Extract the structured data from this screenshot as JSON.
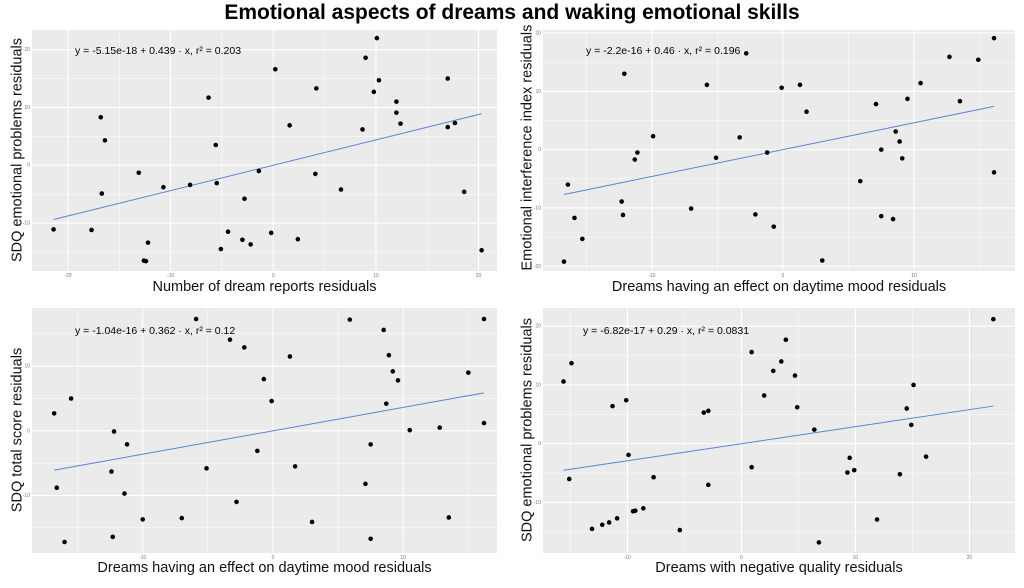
{
  "title": "Emotional aspects of dreams and waking emotional skills",
  "colors": {
    "panel_bg": "#ebebeb",
    "grid": "#ffffff",
    "points": "#000000",
    "fit_line": "#5b83d6"
  },
  "chart_data": [
    {
      "type": "scatter",
      "xlabel": "Number of dream reports residuals",
      "ylabel": "SDQ emotional problems residuals",
      "annotation": "y = -5.15e-18 + 0.439 · x,  r² = 0.203",
      "xlim": [
        -23.5,
        21.8
      ],
      "ylim": [
        -18.3,
        23.4
      ],
      "xticks": [
        -20,
        -10,
        0,
        10,
        20
      ],
      "yticks": [
        -10,
        0,
        10,
        20
      ],
      "grid": true,
      "fit": {
        "intercept": -5.15e-18,
        "slope": 0.439,
        "r2": 0.203,
        "xrange": [
          -21.4,
          20.3
        ]
      },
      "points": [
        [
          -21.4,
          -11.1
        ],
        [
          -17.7,
          -11.2
        ],
        [
          -16.8,
          8.3
        ],
        [
          -16.4,
          4.3
        ],
        [
          -16.7,
          -4.9
        ],
        [
          -13.1,
          -1.3
        ],
        [
          -12.2,
          -13.4
        ],
        [
          -12.6,
          -16.5
        ],
        [
          -12.4,
          -16.6
        ],
        [
          -10.7,
          -3.8
        ],
        [
          -8.1,
          -3.4
        ],
        [
          -6.3,
          11.7
        ],
        [
          -5.6,
          3.5
        ],
        [
          -5.5,
          -3.1
        ],
        [
          -5.1,
          -14.5
        ],
        [
          -4.4,
          -11.5
        ],
        [
          -3.0,
          -12.9
        ],
        [
          -2.8,
          -5.8
        ],
        [
          -2.2,
          -13.7
        ],
        [
          -1.4,
          -1.0
        ],
        [
          -0.2,
          -11.7
        ],
        [
          0.2,
          16.6
        ],
        [
          1.6,
          6.9
        ],
        [
          2.4,
          -12.8
        ],
        [
          4.1,
          -1.5
        ],
        [
          4.2,
          13.3
        ],
        [
          6.6,
          -4.2
        ],
        [
          8.7,
          6.2
        ],
        [
          9.0,
          18.6
        ],
        [
          9.8,
          12.7
        ],
        [
          10.1,
          22.0
        ],
        [
          10.3,
          14.7
        ],
        [
          12.0,
          11.0
        ],
        [
          12.0,
          9.1
        ],
        [
          12.4,
          7.2
        ],
        [
          17.0,
          15.0
        ],
        [
          17.0,
          6.6
        ],
        [
          17.7,
          7.3
        ],
        [
          18.6,
          -4.6
        ],
        [
          20.3,
          -14.7
        ]
      ]
    },
    {
      "type": "scatter",
      "xlabel": "Dreams having an effect on daytime mood residuals",
      "ylabel": "Emotional interference index residuals",
      "annotation": "y = -2.2e-16 + 0.46 · x,  r² = 0.196",
      "xlim": [
        -18.3,
        17.7
      ],
      "ylim": [
        -20.8,
        20.5
      ],
      "xticks": [
        -10,
        0,
        10
      ],
      "yticks": [
        -20,
        -10,
        0,
        10,
        20
      ],
      "grid": true,
      "fit": {
        "intercept": -2.2e-16,
        "slope": 0.46,
        "r2": 0.196,
        "xrange": [
          -16.7,
          16.1
        ]
      },
      "points": [
        [
          -16.7,
          -19.2
        ],
        [
          -16.4,
          -6.0
        ],
        [
          -15.9,
          -11.7
        ],
        [
          -15.3,
          -15.3
        ],
        [
          -12.3,
          -8.9
        ],
        [
          -12.2,
          -11.2
        ],
        [
          -12.1,
          13.0
        ],
        [
          -11.3,
          -1.7
        ],
        [
          -11.1,
          -0.5
        ],
        [
          -9.9,
          2.3
        ],
        [
          -7.0,
          -10.1
        ],
        [
          -5.8,
          11.1
        ],
        [
          -5.1,
          -1.4
        ],
        [
          -3.3,
          2.1
        ],
        [
          -2.8,
          16.5
        ],
        [
          -2.1,
          -11.1
        ],
        [
          -1.2,
          -0.5
        ],
        [
          -0.7,
          -13.2
        ],
        [
          -0.1,
          10.6
        ],
        [
          1.3,
          11.1
        ],
        [
          1.8,
          6.5
        ],
        [
          3.0,
          -19.0
        ],
        [
          5.9,
          -5.4
        ],
        [
          7.1,
          7.8
        ],
        [
          7.5,
          0.0
        ],
        [
          7.5,
          -11.4
        ],
        [
          8.4,
          -11.9
        ],
        [
          8.6,
          3.1
        ],
        [
          8.9,
          1.4
        ],
        [
          9.1,
          -1.5
        ],
        [
          9.5,
          8.7
        ],
        [
          10.5,
          11.4
        ],
        [
          12.7,
          15.9
        ],
        [
          13.5,
          8.3
        ],
        [
          14.9,
          15.4
        ],
        [
          16.1,
          -3.9
        ],
        [
          16.1,
          19.1
        ]
      ]
    },
    {
      "type": "scatter",
      "xlabel": "Dreams having an effect on daytime mood residuals",
      "ylabel": "SDQ total score residuals",
      "annotation": "y = -1.04e-16 + 0.362 · x,  r² = 0.12",
      "xlim": [
        -18.5,
        17.2
      ],
      "ylim": [
        -18.9,
        19.0
      ],
      "xticks": [
        -10,
        0,
        10
      ],
      "yticks": [
        -10,
        0,
        10
      ],
      "grid": true,
      "fit": {
        "intercept": -1.04e-16,
        "slope": 0.362,
        "r2": 0.12,
        "xrange": [
          -16.8,
          16.2
        ]
      },
      "points": [
        [
          -16.8,
          2.7
        ],
        [
          -16.6,
          -8.8
        ],
        [
          -16.0,
          -17.2
        ],
        [
          -15.5,
          5.0
        ],
        [
          -12.4,
          -6.3
        ],
        [
          -12.3,
          -16.4
        ],
        [
          -12.2,
          -0.1
        ],
        [
          -11.4,
          -9.7
        ],
        [
          -11.2,
          -2.1
        ],
        [
          -10.0,
          -13.7
        ],
        [
          -7.0,
          -13.5
        ],
        [
          -5.9,
          17.3
        ],
        [
          -5.1,
          -5.8
        ],
        [
          -3.3,
          14.1
        ],
        [
          -2.8,
          -11.0
        ],
        [
          -2.2,
          12.9
        ],
        [
          -1.2,
          -3.1
        ],
        [
          -0.7,
          8.0
        ],
        [
          -0.1,
          4.6
        ],
        [
          1.3,
          11.5
        ],
        [
          1.7,
          -5.5
        ],
        [
          3.0,
          -14.1
        ],
        [
          5.9,
          17.2
        ],
        [
          7.1,
          -8.2
        ],
        [
          7.5,
          -2.1
        ],
        [
          7.5,
          -16.7
        ],
        [
          8.5,
          15.6
        ],
        [
          8.7,
          4.2
        ],
        [
          8.9,
          11.7
        ],
        [
          9.2,
          9.2
        ],
        [
          9.6,
          7.8
        ],
        [
          10.5,
          0.1
        ],
        [
          12.8,
          0.5
        ],
        [
          13.5,
          -13.4
        ],
        [
          15.0,
          9.0
        ],
        [
          16.2,
          17.3
        ],
        [
          16.2,
          1.2
        ]
      ]
    },
    {
      "type": "scatter",
      "xlabel": "Dreams with negative quality residuals",
      "ylabel": "SDQ emotional problems residuals",
      "annotation": "y = -6.82e-17 + 0.29 · x,  r² = 0.0831",
      "xlim": [
        -17.4,
        24.0
      ],
      "ylim": [
        -18.6,
        23.1
      ],
      "xticks": [
        -10,
        0,
        10,
        20
      ],
      "yticks": [
        -10,
        0,
        10,
        20
      ],
      "grid": true,
      "fit": {
        "intercept": -6.82e-17,
        "slope": 0.29,
        "r2": 0.0831,
        "xrange": [
          -15.6,
          22.1
        ]
      },
      "points": [
        [
          -15.6,
          10.6
        ],
        [
          -15.1,
          -6.0
        ],
        [
          -14.9,
          13.7
        ],
        [
          -13.1,
          -14.5
        ],
        [
          -12.2,
          -13.8
        ],
        [
          -11.6,
          -13.4
        ],
        [
          -11.3,
          6.4
        ],
        [
          -10.9,
          -12.7
        ],
        [
          -10.1,
          7.4
        ],
        [
          -9.9,
          -1.9
        ],
        [
          -9.5,
          -11.5
        ],
        [
          -9.3,
          -11.4
        ],
        [
          -8.6,
          -11.0
        ],
        [
          -7.7,
          -5.7
        ],
        [
          -5.4,
          -14.7
        ],
        [
          -3.3,
          5.3
        ],
        [
          -2.9,
          5.6
        ],
        [
          -2.9,
          -7.0
        ],
        [
          0.9,
          15.6
        ],
        [
          0.9,
          -4.0
        ],
        [
          2.0,
          8.2
        ],
        [
          2.8,
          12.4
        ],
        [
          3.5,
          14.0
        ],
        [
          3.9,
          17.7
        ],
        [
          4.7,
          11.6
        ],
        [
          4.9,
          6.2
        ],
        [
          6.4,
          2.4
        ],
        [
          6.8,
          -16.8
        ],
        [
          9.3,
          -4.9
        ],
        [
          9.5,
          -2.4
        ],
        [
          9.9,
          -4.5
        ],
        [
          11.9,
          -12.9
        ],
        [
          13.9,
          -5.2
        ],
        [
          14.5,
          6.0
        ],
        [
          14.9,
          3.2
        ],
        [
          15.1,
          10.0
        ],
        [
          16.2,
          -2.2
        ],
        [
          22.1,
          21.2
        ]
      ]
    }
  ]
}
